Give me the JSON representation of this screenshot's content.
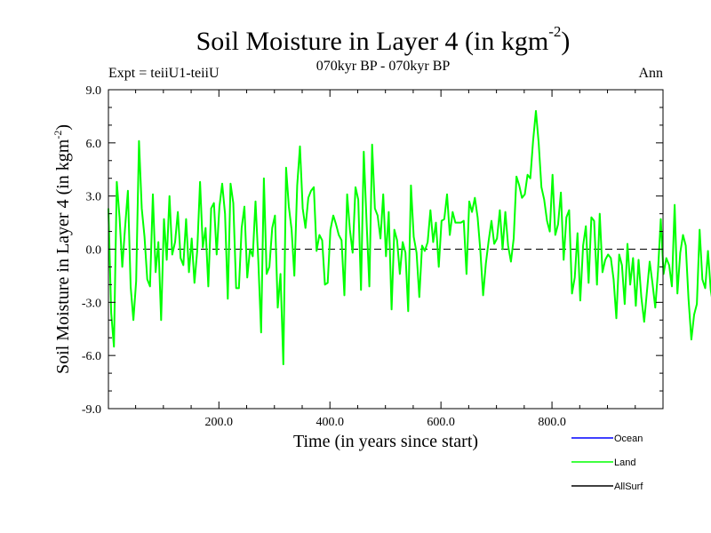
{
  "header": {
    "title": "Soil Moisture in Layer 4 (in kgm",
    "title_sup": "-2",
    "title_close": ")",
    "subtitle": "070kyr BP - 070kyr BP",
    "expt": "Expt = teiiU1-teiiU",
    "period": "Ann"
  },
  "chart_data": {
    "type": "line",
    "title": "Soil Moisture in Layer 4 (in kgm-2)",
    "subtitle": "070kyr BP - 070kyr BP",
    "xlabel": "Time (in years since start)",
    "ylabel": "Soil Moisture in Layer 4 (in kgm-2)",
    "ylabel_main": "Soil Moisture in Layer 4 (in kgm",
    "ylabel_sup": "-2",
    "ylabel_close": ")",
    "xlim": [
      1,
      1000
    ],
    "ylim": [
      -9,
      9
    ],
    "x_ticks": [
      200,
      400,
      600,
      800
    ],
    "x_tick_labels": [
      "200.0",
      "400.0",
      "600.0",
      "800.0"
    ],
    "y_ticks": [
      -9,
      -6,
      -3,
      0,
      3,
      6,
      9
    ],
    "y_tick_labels": [
      "-9.0",
      "-6.0",
      "-3.0",
      "0.0",
      "3.0",
      "6.0",
      "9.0"
    ],
    "zero_line": true,
    "grid": false,
    "legend_position": "bottom-right",
    "series": [
      {
        "name": "Ocean",
        "color": "#0000ff",
        "values": []
      },
      {
        "name": "Land",
        "color": "#00ff00",
        "x_start": 1,
        "x_step": 5,
        "values": [
          2.3,
          -3.6,
          -5.5,
          3.8,
          1.8,
          -1.0,
          1.2,
          3.3,
          -2.1,
          -4.0,
          -1.8,
          6.1,
          2.3,
          0.7,
          -1.7,
          -2.1,
          3.1,
          -1.3,
          0.4,
          -4.0,
          1.7,
          -0.6,
          3.0,
          -0.3,
          0.4,
          2.1,
          -0.5,
          -0.9,
          1.7,
          -1.3,
          0.6,
          -1.9,
          -0.1,
          3.8,
          0.1,
          1.2,
          -2.1,
          2.3,
          2.6,
          -0.3,
          2.4,
          3.7,
          2.0,
          -2.8,
          3.7,
          2.6,
          -2.2,
          -2.2,
          1.2,
          2.4,
          -1.6,
          0.0,
          -0.4,
          2.7,
          -0.6,
          -4.7,
          4.0,
          -1.4,
          -1.0,
          1.2,
          1.9,
          -3.3,
          -1.4,
          -6.5,
          4.6,
          2.4,
          1.1,
          -1.5,
          3.6,
          5.8,
          2.3,
          1.2,
          2.9,
          3.3,
          3.5,
          -0.1,
          0.8,
          0.5,
          -2.0,
          -1.9,
          1.1,
          1.9,
          1.4,
          0.8,
          0.5,
          -2.6,
          3.1,
          1.1,
          -0.2,
          3.5,
          2.8,
          -2.3,
          5.5,
          1.5,
          -2.1,
          5.9,
          2.3,
          1.9,
          0.6,
          3.1,
          -0.4,
          2.1,
          -3.4,
          1.1,
          0.5,
          -1.4,
          0.4,
          -0.2,
          -3.5,
          3.6,
          0.7,
          -0.2,
          -2.7,
          0.2,
          -0.1,
          0.4,
          2.2,
          0.4,
          1.5,
          -1.0,
          1.6,
          1.7,
          3.1,
          0.8,
          2.1,
          1.5,
          1.5,
          1.5,
          1.6,
          -1.4,
          2.7,
          2.1,
          2.9,
          1.8,
          -0.1,
          -2.6,
          -0.8,
          0.5,
          1.6,
          0.3,
          0.6,
          2.2,
          0.0,
          2.1,
          0.2,
          -0.7,
          0.6,
          4.1,
          3.6,
          2.9,
          3.1,
          4.2,
          4.0,
          6.1,
          7.8,
          6.0,
          3.5,
          2.8,
          1.6,
          1.0,
          4.2,
          0.8,
          1.4,
          3.2,
          -0.6,
          1.8,
          2.2,
          -2.5,
          -1.6,
          0.9,
          -2.9,
          0.2,
          1.3,
          -1.9,
          1.8,
          1.6,
          -2.0,
          2.0,
          -1.3,
          -0.6,
          -0.3,
          -0.5,
          -1.7,
          -3.9,
          -0.3,
          -0.9,
          -3.1,
          0.3,
          -2.0,
          -0.5,
          -3.2,
          -0.6,
          -2.7,
          -4.1,
          -2.4,
          -0.7,
          -1.9,
          -3.3,
          -1.2,
          1.7,
          -1.4,
          -0.5,
          -0.9,
          -2.1,
          2.5,
          -2.5,
          -0.2,
          0.8,
          0.2,
          -2.8,
          -5.1,
          -3.7,
          -3.1,
          1.1,
          -1.7,
          -2.2,
          -0.1,
          -2.3,
          -3.3,
          -1.0,
          -3.6,
          -1.0,
          -2.6,
          -2.9,
          -1.5,
          -2.9,
          -2.1,
          -2.3,
          -2.7,
          0.9,
          -1.9,
          -2.2,
          -0.6,
          0.8,
          -1.8,
          0.7,
          -1.2,
          1.6,
          2.0,
          -0.5,
          0.1,
          -3.2,
          -0.7,
          0.3,
          -2.9,
          -1.5,
          -1.5,
          -0.5,
          -2.7,
          -1.4,
          -3.0,
          -1.6,
          -1.5,
          -1.2,
          2.5,
          0.3,
          1.7,
          -3.3,
          -1.2,
          -2.5,
          -1.3,
          -3.3,
          -2.3,
          -2.6,
          -0.3,
          -0.7,
          -0.5,
          -2.4,
          -4.9,
          -3.6,
          1.6,
          -0.3,
          -2.6,
          -3.1,
          -0.9,
          -5.1,
          -2.4,
          -0.1,
          0.1,
          0.8,
          0.9,
          -2.7,
          0.1,
          -2.0,
          -0.7,
          -3.4,
          -4.4,
          -1.2,
          -0.3,
          -3.9,
          -1.3,
          -2.8,
          -3.0,
          -1.9,
          -3.5,
          -1.6,
          -2.3,
          -2.9,
          -2.7,
          -1.9,
          -3.0,
          -1.8,
          -1.3,
          -2.9,
          -1.2,
          -1.9,
          -1.8,
          0.2,
          -1.3,
          -0.2,
          -1.1,
          -1.8,
          0.0,
          0.3,
          -1.5,
          0.7,
          -1.8,
          -0.4,
          -1.2,
          -0.9,
          -1.0,
          -2.8,
          -3.5,
          0.4,
          -3.0,
          -1.1,
          -0.6,
          -3.7,
          -1.6,
          -1.6,
          -0.5,
          0.1,
          -1.1,
          -3.0,
          -1.6,
          -1.6,
          -3.2,
          -2.6,
          -3.7,
          -0.5,
          -4.3,
          -1.8,
          -4.9,
          -2.4,
          -1.0,
          -0.4,
          -2.0,
          -1.6,
          -2.6,
          -0.9,
          -2.8,
          -4.2,
          -1.9,
          -3.4,
          -1.2,
          -2.4,
          -1.0,
          0.2,
          -3.7,
          1.0,
          0.6,
          0.2,
          2.9,
          1.9,
          0.5,
          -1.0,
          -0.1,
          -0.8,
          0.3,
          1.6,
          1.6,
          -0.8,
          -0.9,
          2.6,
          -0.8,
          -0.5,
          -1.1,
          -2.2,
          -2.7,
          -1.1,
          -2.8,
          -2.2,
          -2.2,
          -0.6,
          -1.6,
          -2.1,
          -2.2,
          -4.1,
          -3.0,
          -0.5,
          -1.5,
          -0.3,
          -2.0,
          -1.5,
          -1.0,
          -1.5,
          -1.7,
          -1.6,
          -1.4,
          -1.5,
          -1.0,
          -0.3,
          -0.5,
          -0.9,
          -0.3,
          -2.0,
          -2.2,
          -0.8,
          -1.3,
          -0.2,
          -1.8,
          -1.7,
          -1.7,
          -1.8,
          -2.1,
          -2.2,
          -3.2,
          3.1,
          1.6,
          2.1,
          1.2,
          0.0,
          -2.0,
          2.2,
          -1.6,
          1.3,
          2.5,
          3.7,
          -0.2,
          2.0,
          0.2,
          -0.8,
          -1.5,
          -0.7,
          -1.3
        ]
      },
      {
        "name": "AllSurf",
        "color": "#000000",
        "values": []
      }
    ]
  }
}
